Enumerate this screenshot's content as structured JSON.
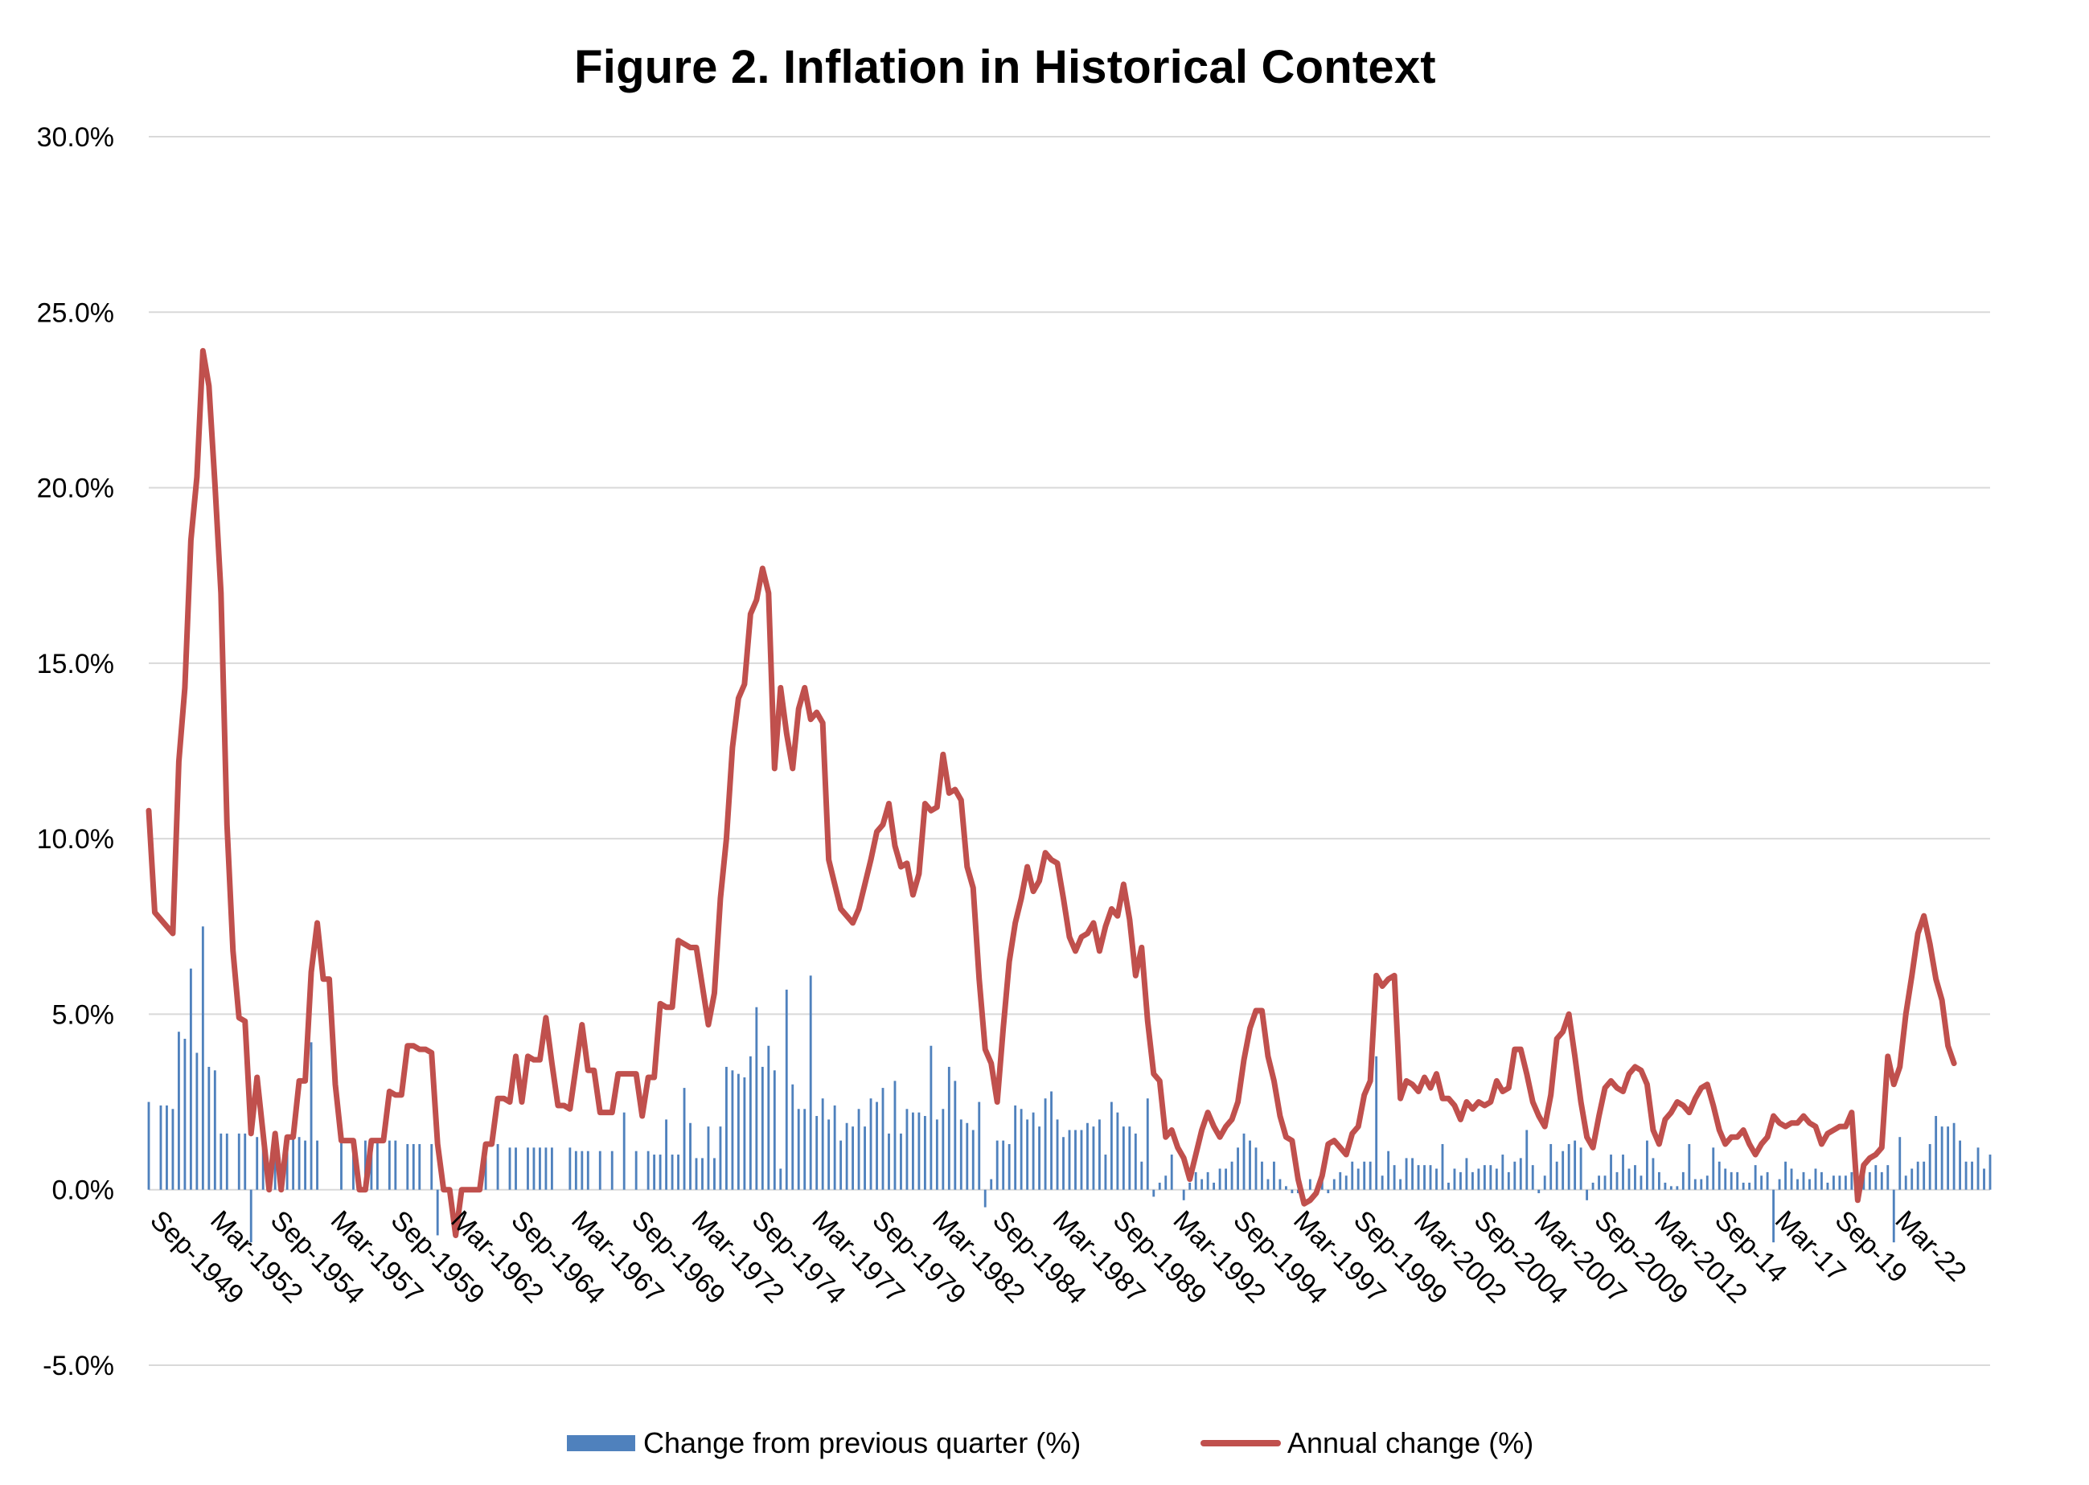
{
  "colors": {
    "bars": "#4f81bd",
    "line": "#c0504d",
    "grid": "#d9d9d9",
    "text": "#000000"
  },
  "chart_data": {
    "type": "bar+line",
    "title": "Figure 2. Inflation in Historical Context",
    "xlabel": "",
    "ylabel": "",
    "ylim": [
      -5,
      30
    ],
    "y_ticks": [
      -5,
      0,
      5,
      10,
      15,
      20,
      25,
      30
    ],
    "y_tick_labels": [
      "-5.0%",
      "0.0%",
      "5.0%",
      "10.0%",
      "15.0%",
      "20.0%",
      "25.0%",
      "30.0%"
    ],
    "x_start": "Sep-1949",
    "x_frequency": "quarterly",
    "x_tick_labels": [
      "Sep-1949",
      "Mar-1952",
      "Sep-1954",
      "Mar-1957",
      "Sep-1959",
      "Mar-1962",
      "Sep-1964",
      "Mar-1967",
      "Sep-1969",
      "Mar-1972",
      "Sep-1974",
      "Mar-1977",
      "Sep-1979",
      "Mar-1982",
      "Sep-1984",
      "Mar-1987",
      "Sep-1989",
      "Mar-1992",
      "Sep-1994",
      "Mar-1997",
      "Sep-1999",
      "Mar-2002",
      "Sep-2004",
      "Mar-2007",
      "Sep-2009",
      "Mar-2012",
      "Sep-14",
      "Mar-17",
      "Sep-19",
      "Mar-22"
    ],
    "grid": true,
    "legend_position": "bottom",
    "series": [
      {
        "name": "Change from previous quarter (%)",
        "type": "bar",
        "values": [
          2.5,
          0,
          2.4,
          2.4,
          2.3,
          4.5,
          4.3,
          6.3,
          3.9,
          7.5,
          3.5,
          3.4,
          1.6,
          1.6,
          0,
          1.6,
          1.6,
          -1.5,
          1.5,
          1.3,
          0,
          1.5,
          0,
          1.5,
          1.5,
          1.5,
          1.4,
          4.2,
          1.4,
          0,
          0,
          0,
          1.4,
          0,
          1.4,
          0,
          1.4,
          1.4,
          1.4,
          0,
          1.4,
          1.4,
          0,
          1.3,
          1.3,
          1.3,
          0,
          1.3,
          -1.3,
          0,
          0,
          0,
          0,
          0,
          0,
          0,
          1.3,
          0,
          1.3,
          0,
          1.2,
          1.2,
          0,
          1.2,
          1.2,
          1.2,
          1.2,
          1.2,
          0,
          0,
          1.2,
          1.1,
          1.1,
          1.1,
          0,
          1.1,
          0,
          1.1,
          0,
          2.2,
          0,
          1.1,
          0,
          1.1,
          1.0,
          1.0,
          2.0,
          1.0,
          1.0,
          2.9,
          1.9,
          0.9,
          0.9,
          1.8,
          0.9,
          1.8,
          3.5,
          3.4,
          3.3,
          3.2,
          3.8,
          5.2,
          3.5,
          4.1,
          3.4,
          0.6,
          5.7,
          3.0,
          2.3,
          2.3,
          6.1,
          2.1,
          2.6,
          2.0,
          2.4,
          1.4,
          1.9,
          1.8,
          2.3,
          1.8,
          2.6,
          2.5,
          2.9,
          1.6,
          3.1,
          1.6,
          2.3,
          2.2,
          2.2,
          2.1,
          4.1,
          2.0,
          2.3,
          3.5,
          3.1,
          2.0,
          1.9,
          1.7,
          2.5,
          -0.5,
          0.3,
          1.4,
          1.4,
          1.3,
          2.4,
          2.3,
          2.0,
          2.2,
          1.8,
          2.6,
          2.8,
          2.0,
          1.5,
          1.7,
          1.7,
          1.7,
          1.9,
          1.8,
          2.0,
          1.0,
          2.5,
          2.2,
          1.8,
          1.8,
          1.6,
          0.8,
          2.6,
          -0.2,
          0.2,
          0.4,
          1.0,
          0,
          -0.3,
          0.2,
          0.5,
          0.3,
          0.5,
          0.2,
          0.6,
          0.6,
          0.8,
          1.2,
          1.6,
          1.4,
          1.2,
          0.8,
          0.3,
          0.8,
          0.3,
          0.1,
          -0.1,
          -0.1,
          0,
          0.3,
          0,
          0.3,
          -0.1,
          0.3,
          0.5,
          0.4,
          0.8,
          0.6,
          0.8,
          0.8,
          3.8,
          0.4,
          1.1,
          0.7,
          0.3,
          0.9,
          0.9,
          0.7,
          0.7,
          0.7,
          0.6,
          1.3,
          0.2,
          0.6,
          0.5,
          0.9,
          0.5,
          0.6,
          0.7,
          0.7,
          0.6,
          1.0,
          0.5,
          0.8,
          0.9,
          1.7,
          0.7,
          -0.1,
          0.4,
          1.3,
          0.8,
          1.1,
          1.3,
          1.4,
          1.2,
          -0.3,
          0.2,
          0.4,
          0.4,
          1.0,
          0.5,
          1.0,
          0.6,
          0.7,
          0.4,
          1.4,
          0.9,
          0.5,
          0.2,
          0.1,
          0.1,
          0.5,
          1.3,
          0.3,
          0.3,
          0.4,
          1.2,
          0.8,
          0.6,
          0.5,
          0.5,
          0.2,
          0.2,
          0.7,
          0.4,
          0.5,
          -1.5,
          0.3,
          0.8,
          0.6,
          0.3,
          0.5,
          0.3,
          0.6,
          0.5,
          0.2,
          0.4,
          0.4,
          0.4,
          0.5,
          0.2,
          0.6,
          0.5,
          0.7,
          0.5,
          0.7,
          -1.5,
          1.5,
          0.4,
          0.6,
          0.8,
          0.8,
          1.3,
          2.1,
          1.8,
          1.8,
          1.9,
          1.4,
          0.8,
          0.8,
          1.2,
          0.6,
          1.0
        ]
      },
      {
        "name": "Annual change (%)",
        "type": "line",
        "values": [
          10.8,
          7.9,
          7.7,
          7.5,
          7.3,
          12.2,
          14.3,
          18.5,
          20.3,
          23.9,
          22.9,
          20.1,
          17.0,
          10.4,
          6.8,
          4.9,
          4.8,
          1.6,
          3.2,
          1.6,
          0,
          1.6,
          0,
          1.5,
          1.5,
          3.1,
          3.1,
          6.2,
          7.6,
          6.0,
          6.0,
          3.0,
          1.4,
          1.4,
          1.4,
          0,
          0,
          1.4,
          1.4,
          1.4,
          2.8,
          2.7,
          2.7,
          4.1,
          4.1,
          4.0,
          4.0,
          3.9,
          1.3,
          0,
          0,
          -1.3,
          0,
          0,
          0,
          0,
          1.3,
          1.3,
          2.6,
          2.6,
          2.5,
          3.8,
          2.5,
          3.8,
          3.7,
          3.7,
          4.9,
          3.6,
          2.4,
          2.4,
          2.3,
          3.5,
          4.7,
          3.4,
          3.4,
          2.2,
          2.2,
          2.2,
          3.3,
          3.3,
          3.3,
          3.3,
          2.1,
          3.2,
          3.2,
          5.3,
          5.2,
          5.2,
          7.1,
          7.0,
          6.9,
          6.9,
          5.8,
          4.7,
          5.6,
          8.3,
          10.0,
          12.6,
          14.0,
          14.4,
          16.4,
          16.8,
          17.7,
          17.0,
          12.0,
          14.3,
          13.0,
          12.0,
          13.7,
          14.3,
          13.4,
          13.6,
          13.3,
          9.4,
          8.7,
          8.0,
          7.8,
          7.6,
          8.0,
          8.7,
          9.4,
          10.2,
          10.4,
          11.0,
          9.8,
          9.2,
          9.3,
          8.4,
          9.0,
          11.0,
          10.8,
          10.9,
          12.4,
          11.3,
          11.4,
          11.1,
          9.2,
          8.6,
          6.0,
          4.0,
          3.6,
          2.5,
          4.6,
          6.5,
          7.6,
          8.3,
          9.2,
          8.5,
          8.8,
          9.6,
          9.4,
          9.3,
          8.3,
          7.2,
          6.8,
          7.2,
          7.3,
          7.6,
          6.8,
          7.5,
          8.0,
          7.8,
          8.7,
          7.7,
          6.1,
          6.9,
          4.8,
          3.3,
          3.1,
          1.5,
          1.7,
          1.2,
          0.9,
          0.3,
          1.0,
          1.7,
          2.2,
          1.8,
          1.5,
          1.8,
          2.0,
          2.5,
          3.7,
          4.6,
          5.1,
          5.1,
          3.8,
          3.1,
          2.1,
          1.5,
          1.4,
          0.3,
          -0.4,
          -0.3,
          -0.1,
          0.4,
          1.3,
          1.4,
          1.2,
          1.0,
          1.6,
          1.8,
          2.7,
          3.1,
          6.1,
          5.8,
          6.0,
          6.1,
          2.6,
          3.1,
          3.0,
          2.8,
          3.2,
          2.9,
          3.3,
          2.6,
          2.6,
          2.4,
          2.0,
          2.5,
          2.3,
          2.5,
          2.4,
          2.5,
          3.1,
          2.8,
          2.9,
          4.0,
          4.0,
          3.3,
          2.5,
          2.1,
          1.8,
          2.7,
          4.3,
          4.5,
          5.0,
          3.8,
          2.5,
          1.5,
          1.2,
          2.1,
          2.9,
          3.1,
          2.9,
          2.8,
          3.3,
          3.5,
          3.4,
          3.0,
          1.7,
          1.3,
          2.0,
          2.2,
          2.5,
          2.4,
          2.2,
          2.6,
          2.9,
          3.0,
          2.4,
          1.7,
          1.3,
          1.5,
          1.5,
          1.7,
          1.3,
          1.0,
          1.3,
          1.5,
          2.1,
          1.9,
          1.8,
          1.9,
          1.9,
          2.1,
          1.9,
          1.8,
          1.3,
          1.6,
          1.7,
          1.8,
          1.8,
          2.2,
          -0.3,
          0.7,
          0.9,
          1.0,
          1.2,
          3.8,
          3.0,
          3.5,
          5.0,
          6.1,
          7.3,
          7.8,
          7.0,
          6.0,
          5.4,
          4.1,
          3.6
        ]
      }
    ]
  }
}
